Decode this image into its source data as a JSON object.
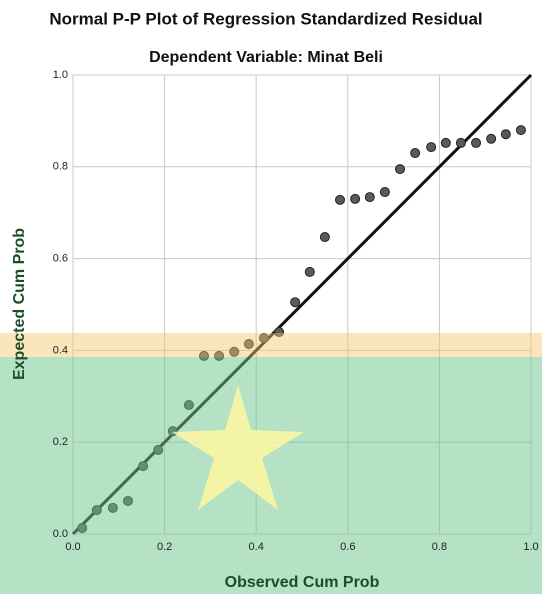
{
  "chart_data": {
    "type": "scatter",
    "title": "Normal P-P Plot of Regression Standardized Residual",
    "subtitle": "Dependent Variable: Minat Beli",
    "x_label": "Observed Cum Prob",
    "y_label": "Expected Cum Prob",
    "color": "#5a5a5a",
    "x": [
      0.02,
      0.052,
      0.087,
      0.12,
      0.153,
      0.186,
      0.218,
      0.253,
      0.286,
      0.319,
      0.352,
      0.384,
      0.417,
      0.45,
      0.485,
      0.517,
      0.55,
      0.583,
      0.616,
      0.648,
      0.681,
      0.714,
      0.747,
      0.782,
      0.814,
      0.847,
      0.88,
      0.913,
      0.945,
      0.978
    ],
    "values": [
      0.013,
      0.052,
      0.057,
      0.072,
      0.148,
      0.183,
      0.224,
      0.281,
      0.388,
      0.388,
      0.397,
      0.414,
      0.427,
      0.44,
      0.505,
      0.571,
      0.647,
      0.728,
      0.73,
      0.734,
      0.745,
      0.795,
      0.83,
      0.843,
      0.852,
      0.852,
      0.852,
      0.861,
      0.871,
      0.88
    ],
    "xlim": [
      0,
      1
    ],
    "ylim": [
      0,
      1
    ],
    "xticks": [
      {
        "value": 0,
        "label": "0.0"
      },
      {
        "value": 0.2,
        "label": "0.2"
      },
      {
        "value": 0.4,
        "label": "0.4"
      },
      {
        "value": 0.6,
        "label": "0.6"
      },
      {
        "value": 0.8,
        "label": "0.8"
      },
      {
        "value": 1,
        "label": "1.0"
      }
    ],
    "yticks": [
      {
        "value": 0,
        "label": "0.0"
      },
      {
        "value": 0.2,
        "label": "0.2"
      },
      {
        "value": 0.4,
        "label": "0.4"
      },
      {
        "value": 0.6,
        "label": "0.6"
      },
      {
        "value": 0.8,
        "label": "0.8"
      },
      {
        "value": 1,
        "label": "1.0"
      }
    ],
    "grid": true
  }
}
